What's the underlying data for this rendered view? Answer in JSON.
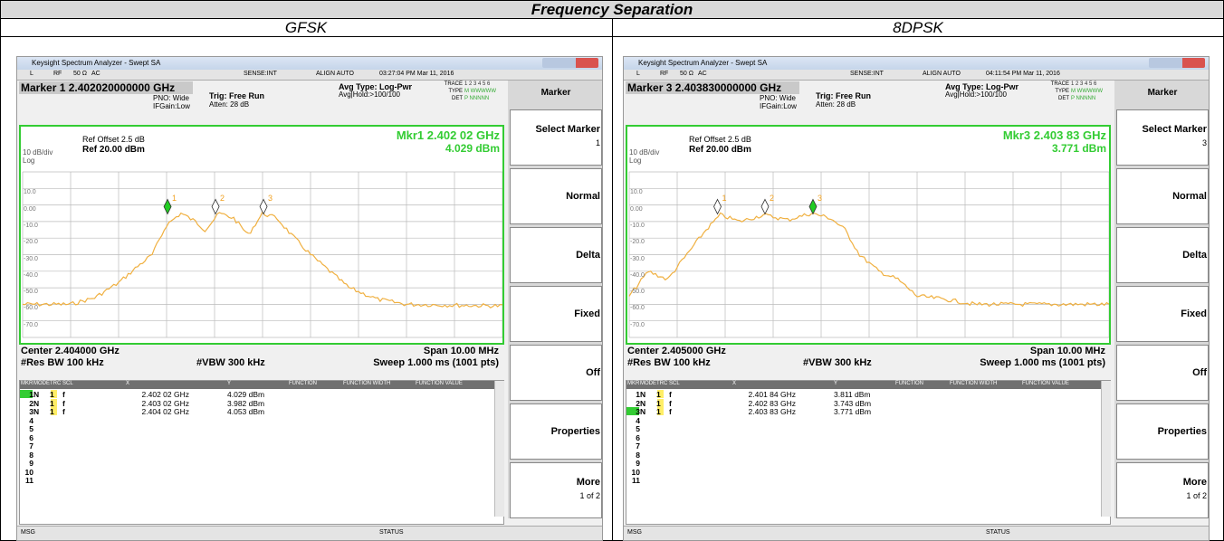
{
  "title": "Frequency Separation",
  "panels": [
    {
      "mode": "GFSK",
      "window_title": "Keysight Spectrum Analyzer - Swept SA",
      "status_items": [
        "L",
        "RF",
        "50 Ω",
        "AC",
        "SENSE:INT",
        "ALIGN AUTO",
        "03:27:04 PM Mar 11, 2016"
      ],
      "marker_readout": "Marker 1 2.402020000000 GHz",
      "pno": "PNO: Wide",
      "ifgain": "IFGain:Low",
      "trig": "Trig: Free Run",
      "atten": "Atten: 28 dB",
      "avg_type": "Avg Type: Log-Pwr",
      "avg_hold": "Avg|Hold:>100/100",
      "trace_info": [
        [
          "TRACE",
          "1 2 3 4 5 6"
        ],
        [
          "TYPE",
          "M WWWWW"
        ],
        [
          "DET",
          "P NNNNN"
        ]
      ],
      "ref_offset": "Ref Offset 2.5 dB",
      "ref": "Ref 20.00 dBm",
      "scale": "10 dB/div",
      "log": "Log",
      "mkr_freq": "Mkr1 2.402 02 GHz",
      "mkr_level": "4.029 dBm",
      "y_labels": [
        "10.0",
        "0.00",
        "-10.0",
        "-20.0",
        "-30.0",
        "-40.0",
        "-50.0",
        "-60.0",
        "-70.0"
      ],
      "center": "Center 2.404000 GHz",
      "span": "Span 10.00 MHz",
      "res_bw": "#Res BW 100 kHz",
      "vbw": "#VBW 300 kHz",
      "sweep": "Sweep  1.000 ms (1001 pts)",
      "table_headers": [
        "MKR",
        "MODE",
        "TRC",
        "SCL",
        "X",
        "Y",
        "FUNCTION",
        "FUNCTION WIDTH",
        "FUNCTION VALUE"
      ],
      "table_rows": [
        [
          "1",
          "N",
          "1",
          "f",
          "2.402 02 GHz",
          "4.029 dBm"
        ],
        [
          "2",
          "N",
          "1",
          "f",
          "2.403 02 GHz",
          "3.982 dBm"
        ],
        [
          "3",
          "N",
          "1",
          "f",
          "2.404 02 GHz",
          "4.053 dBm"
        ],
        [
          "4"
        ],
        [
          "5"
        ],
        [
          "6"
        ],
        [
          "7"
        ],
        [
          "8"
        ],
        [
          "9"
        ],
        [
          "10"
        ],
        [
          "11"
        ]
      ],
      "softkey_title": "Marker",
      "softkeys": [
        [
          "Select Marker",
          "1"
        ],
        [
          "Normal"
        ],
        [
          "Delta"
        ],
        [
          "Fixed"
        ],
        [
          "Off"
        ],
        [
          "Properties"
        ],
        [
          "More",
          "1 of 2"
        ]
      ],
      "msg": "MSG",
      "status": "STATUS"
    },
    {
      "mode": "8DPSK",
      "window_title": "Keysight Spectrum Analyzer - Swept SA",
      "status_items": [
        "L",
        "RF",
        "50 Ω",
        "AC",
        "SENSE:INT",
        "ALIGN AUTO",
        "04:11:54 PM Mar 11, 2016"
      ],
      "marker_readout": "Marker 3 2.403830000000 GHz",
      "pno": "PNO: Wide",
      "ifgain": "IFGain:Low",
      "trig": "Trig: Free Run",
      "atten": "Atten: 28 dB",
      "avg_type": "Avg Type: Log-Pwr",
      "avg_hold": "Avg|Hold:>100/100",
      "trace_info": [
        [
          "TRACE",
          "1 2 3 4 5 6"
        ],
        [
          "TYPE",
          "M WWWWW"
        ],
        [
          "DET",
          "P NNNNN"
        ]
      ],
      "ref_offset": "Ref Offset 2.5 dB",
      "ref": "Ref 20.00 dBm",
      "scale": "10 dB/div",
      "log": "Log",
      "mkr_freq": "Mkr3 2.403 83 GHz",
      "mkr_level": "3.771 dBm",
      "y_labels": [
        "10.0",
        "0.00",
        "-10.0",
        "-20.0",
        "-30.0",
        "-40.0",
        "-50.0",
        "-60.0",
        "-70.0"
      ],
      "center": "Center 2.405000 GHz",
      "span": "Span 10.00 MHz",
      "res_bw": "#Res BW 100 kHz",
      "vbw": "#VBW 300 kHz",
      "sweep": "Sweep  1.000 ms (1001 pts)",
      "table_headers": [
        "MKR",
        "MODE",
        "TRC",
        "SCL",
        "X",
        "Y",
        "FUNCTION",
        "FUNCTION WIDTH",
        "FUNCTION VALUE"
      ],
      "table_rows": [
        [
          "1",
          "N",
          "1",
          "f",
          "2.401 84 GHz",
          "3.811 dBm"
        ],
        [
          "2",
          "N",
          "1",
          "f",
          "2.402 83 GHz",
          "3.743 dBm"
        ],
        [
          "3",
          "N",
          "1",
          "f",
          "2.403 83 GHz",
          "3.771 dBm"
        ],
        [
          "4"
        ],
        [
          "5"
        ],
        [
          "6"
        ],
        [
          "7"
        ],
        [
          "8"
        ],
        [
          "9"
        ],
        [
          "10"
        ],
        [
          "11"
        ]
      ],
      "softkey_title": "Marker",
      "softkeys": [
        [
          "Select Marker",
          "3"
        ],
        [
          "Normal"
        ],
        [
          "Delta"
        ],
        [
          "Fixed"
        ],
        [
          "Off"
        ],
        [
          "Properties"
        ],
        [
          "More",
          "1 of 2"
        ]
      ],
      "msg": "MSG",
      "status": "STATUS"
    }
  ]
}
